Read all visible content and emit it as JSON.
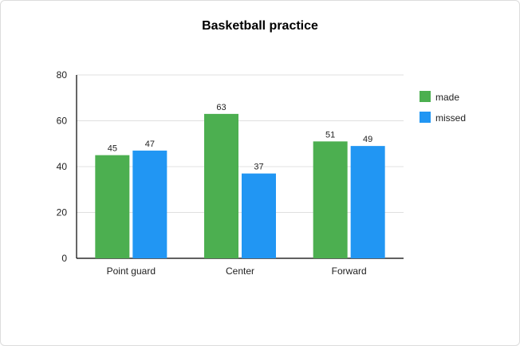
{
  "chart_data": {
    "type": "bar",
    "title": "Basketball practice",
    "xlabel": "",
    "ylabel": "",
    "categories": [
      "Point guard",
      "Center",
      "Forward"
    ],
    "series": [
      {
        "name": "made",
        "values": [
          45,
          63,
          51
        ],
        "color": "#4caf50"
      },
      {
        "name": "missed",
        "values": [
          47,
          37,
          49
        ],
        "color": "#2196f3"
      }
    ],
    "ylim": [
      0,
      80
    ],
    "yticks": [
      0,
      20,
      40,
      60,
      80
    ],
    "grid": true,
    "legend_position": "right",
    "data_labels": true
  }
}
